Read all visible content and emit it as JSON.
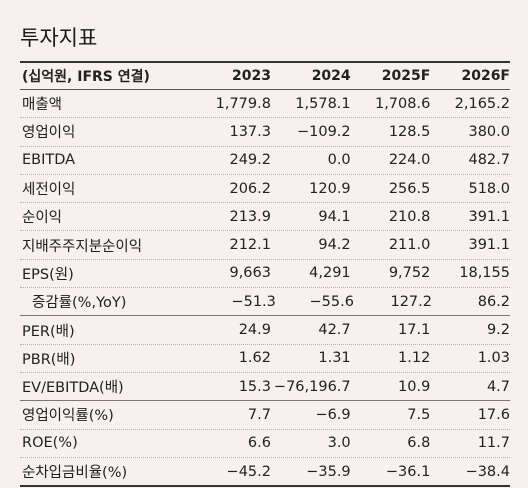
{
  "title": "투자지표",
  "header": {
    "label": "(십억원, IFRS 연결)",
    "years": [
      "2023",
      "2024",
      "2025F",
      "2026F"
    ]
  },
  "rows": [
    {
      "label": "매출액",
      "values": [
        "1,779.8",
        "1,578.1",
        "1,708.6",
        "2,165.2"
      ]
    },
    {
      "label": "영업이익",
      "values": [
        "137.3",
        "−109.2",
        "128.5",
        "380.0"
      ]
    },
    {
      "label": "EBITDA",
      "values": [
        "249.2",
        "0.0",
        "224.0",
        "482.7"
      ]
    },
    {
      "label": "세전이익",
      "values": [
        "206.2",
        "120.9",
        "256.5",
        "518.0"
      ]
    },
    {
      "label": "순이익",
      "values": [
        "213.9",
        "94.1",
        "210.8",
        "391.1"
      ]
    },
    {
      "label": "지배주주지분순이익",
      "values": [
        "212.1",
        "94.2",
        "211.0",
        "391.1"
      ]
    },
    {
      "label": "EPS(원)",
      "values": [
        "9,663",
        "4,291",
        "9,752",
        "18,155"
      ]
    },
    {
      "label": "증감률(%,YoY)",
      "values": [
        "−51.3",
        "−55.6",
        "127.2",
        "86.2"
      ]
    },
    {
      "label": "PER(배)",
      "values": [
        "24.9",
        "42.7",
        "17.1",
        "9.2"
      ]
    },
    {
      "label": "PBR(배)",
      "values": [
        "1.62",
        "1.31",
        "1.12",
        "1.03"
      ]
    },
    {
      "label": "EV/EBITDA(배)",
      "values": [
        "15.3",
        "−76,196.7",
        "10.9",
        "4.7"
      ]
    },
    {
      "label": "영업이익률(%)",
      "values": [
        "7.7",
        "−6.9",
        "7.5",
        "17.6"
      ]
    },
    {
      "label": "ROE(%)",
      "values": [
        "6.6",
        "3.0",
        "6.8",
        "11.7"
      ]
    },
    {
      "label": "순차입금비율(%)",
      "values": [
        "−45.2",
        "−35.9",
        "−36.1",
        "−38.4"
      ]
    }
  ]
}
